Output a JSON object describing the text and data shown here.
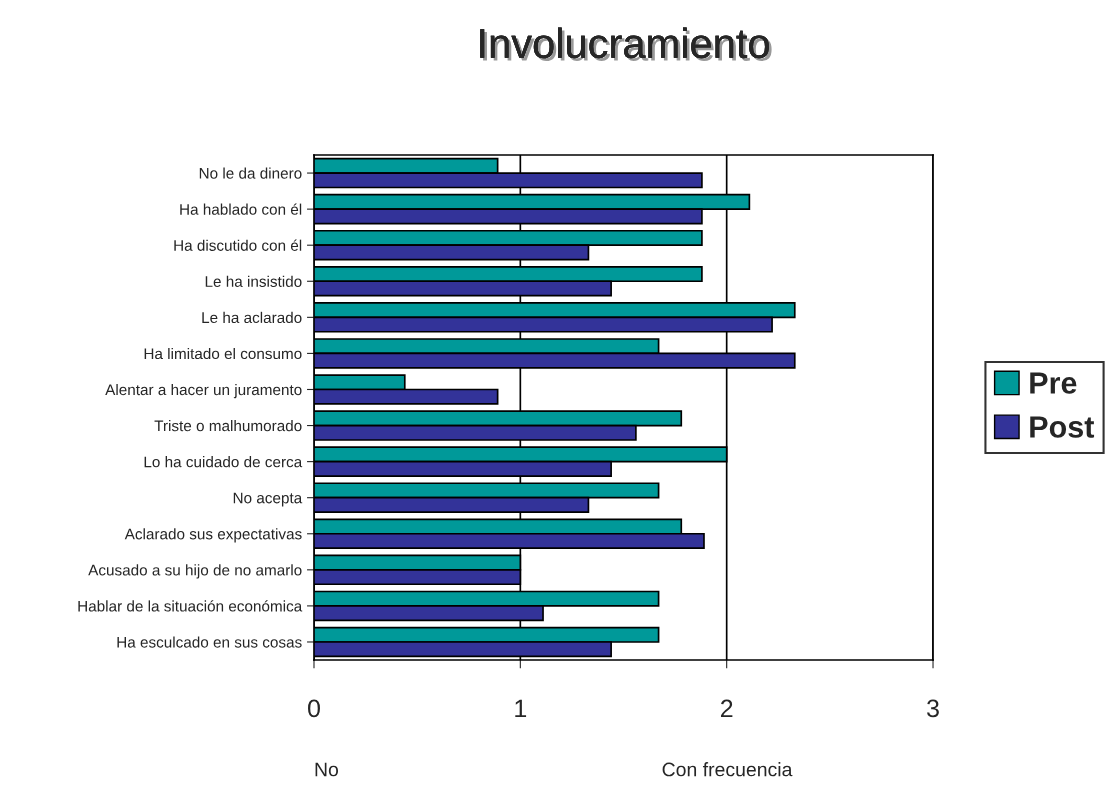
{
  "chart_data": {
    "type": "bar",
    "orientation": "horizontal",
    "title": "Involucramiento",
    "categories": [
      "No le da dinero",
      "Ha hablado con él",
      "Ha discutido con él",
      "Le ha insistido",
      "Le ha aclarado",
      "Ha limitado el consumo",
      "Alentar a hacer un juramento",
      "Triste o malhumorado",
      "Lo ha cuidado de cerca",
      "No acepta",
      "Aclarado sus expectativas",
      "Acusado a su hijo de no amarlo",
      "Hablar de la situación económica",
      "Ha esculcado en sus cosas"
    ],
    "series": [
      {
        "name": "Pre",
        "color": "#009999",
        "values": [
          0.89,
          2.11,
          1.88,
          1.88,
          2.33,
          1.67,
          0.44,
          1.78,
          2.0,
          1.67,
          1.78,
          1.0,
          1.67,
          1.67
        ]
      },
      {
        "name": "Post",
        "color": "#333399",
        "values": [
          1.88,
          1.88,
          1.33,
          1.44,
          2.22,
          2.33,
          0.89,
          1.56,
          1.44,
          1.33,
          1.89,
          1.0,
          1.11,
          1.44
        ]
      }
    ],
    "xlim": [
      0,
      3
    ],
    "xticks": [
      0,
      1,
      2,
      3
    ],
    "grid": "x",
    "legend": "right",
    "annotations": [
      "No",
      "Con frecuencia"
    ]
  }
}
